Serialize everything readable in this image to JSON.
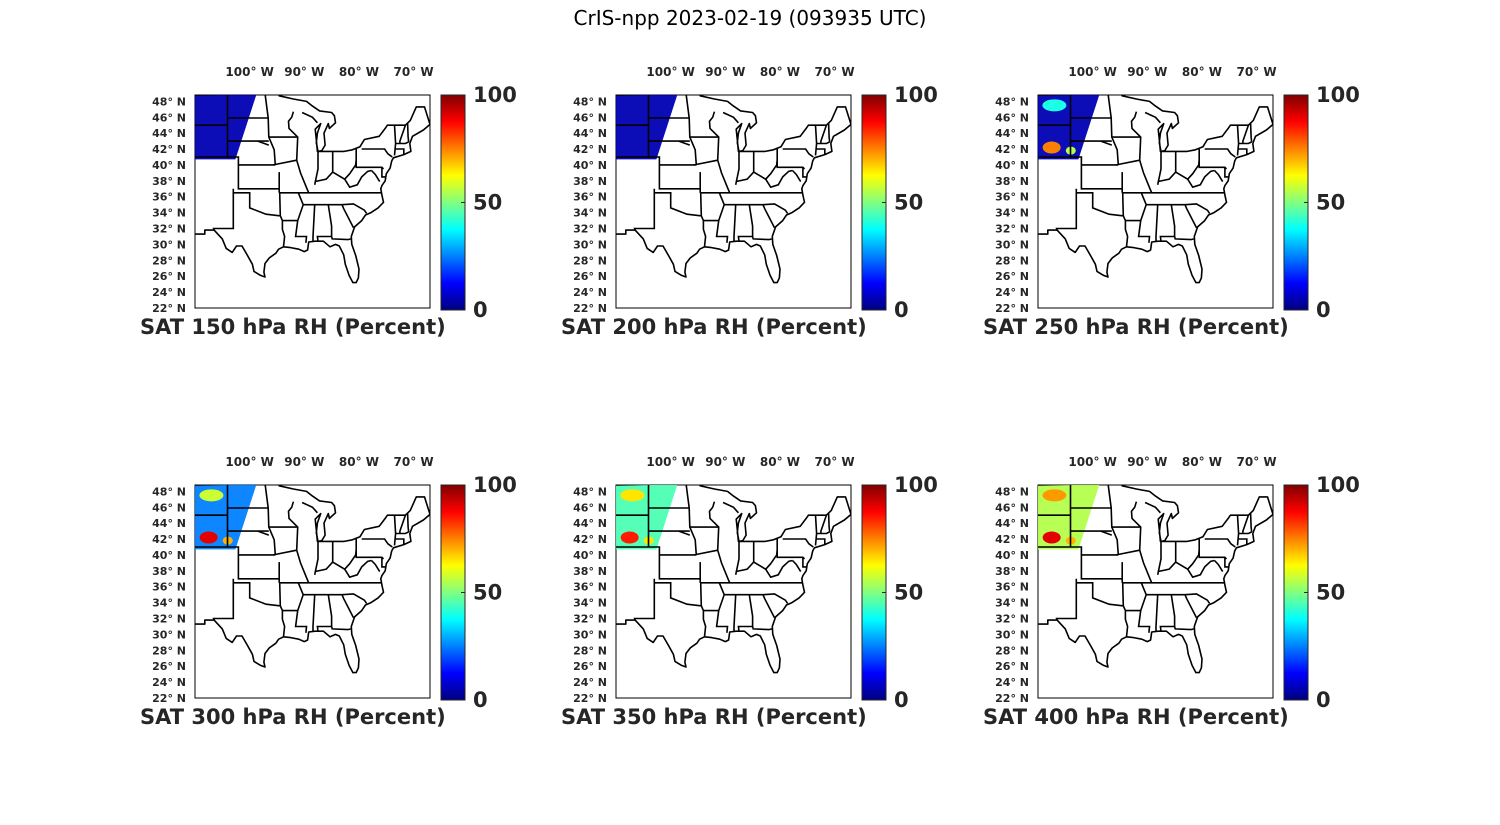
{
  "figure": {
    "title": "CrIS-npp 2023-02-19 (093935 UTC)"
  },
  "axes": {
    "lon_ticks": [
      "100° W",
      "90° W",
      "80° W",
      "70° W"
    ],
    "lat_ticks": [
      "48° N",
      "46° N",
      "44° N",
      "42° N",
      "40° N",
      "38° N",
      "36° N",
      "34° N",
      "32° N",
      "30° N",
      "28° N",
      "26° N",
      "24° N",
      "22° N"
    ],
    "colorbar_ticks": [
      "0",
      "50",
      "100"
    ],
    "colorbar_range": [
      0,
      100
    ],
    "colormap": "jet"
  },
  "panels": [
    {
      "title": "SAT 150 hPa RH (Percent)",
      "pressure_hPa": 150,
      "rh_main": 5,
      "rh_feature": 5
    },
    {
      "title": "SAT 200 hPa RH (Percent)",
      "pressure_hPa": 200,
      "rh_main": 5,
      "rh_feature": 5
    },
    {
      "title": "SAT 250 hPa RH (Percent)",
      "pressure_hPa": 250,
      "rh_main": 5,
      "rh_feature": 75
    },
    {
      "title": "SAT 300 hPa RH (Percent)",
      "pressure_hPa": 300,
      "rh_main": 25,
      "rh_feature": 90
    },
    {
      "title": "SAT 350 hPa RH (Percent)",
      "pressure_hPa": 350,
      "rh_main": 45,
      "rh_feature": 85
    },
    {
      "title": "SAT 400 hPa RH (Percent)",
      "pressure_hPa": 400,
      "rh_main": 55,
      "rh_feature": 90
    }
  ]
}
